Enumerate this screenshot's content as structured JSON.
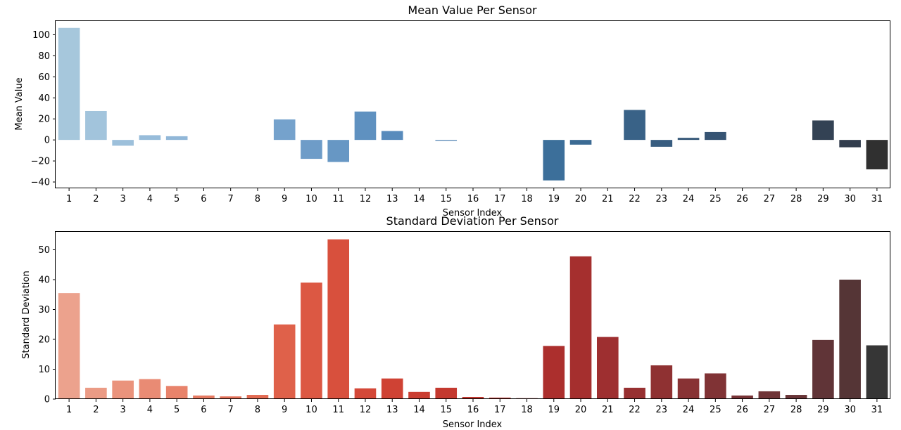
{
  "chart_data": [
    {
      "type": "bar",
      "title": "Mean Value Per Sensor",
      "xlabel": "Sensor Index",
      "ylabel": "Mean Value",
      "ylim": [
        -46,
        113
      ],
      "yticks": [
        -40,
        -20,
        0,
        20,
        40,
        60,
        80,
        100
      ],
      "grid": false,
      "legend": "none",
      "palette": "Blues_d",
      "categories": [
        "1",
        "2",
        "3",
        "4",
        "5",
        "6",
        "7",
        "8",
        "9",
        "10",
        "11",
        "12",
        "13",
        "14",
        "15",
        "16",
        "17",
        "18",
        "19",
        "20",
        "21",
        "22",
        "23",
        "24",
        "25",
        "26",
        "27",
        "28",
        "29",
        "30",
        "31"
      ],
      "values": [
        106.5,
        27.5,
        -5.5,
        4.5,
        3.5,
        0,
        0,
        0,
        19.5,
        -18.0,
        -21.0,
        27.0,
        8.5,
        0,
        -0.8,
        0,
        0,
        0,
        -38.5,
        -4.5,
        0,
        28.5,
        -6.5,
        2.0,
        7.5,
        0,
        0,
        0,
        18.5,
        -7.0,
        -28.0
      ],
      "colors": [
        "#a6c7dc",
        "#a2c4dc",
        "#9dc0db",
        "#97bcda",
        "#91b7d8",
        "#8bb2d6",
        "#84add3",
        "#7da7d0",
        "#75a2cc",
        "#6e9cc8",
        "#6797c4",
        "#5f91c0",
        "#588bbc",
        "#5185b6",
        "#4a7fb0",
        "#457aab",
        "#4176a5",
        "#3e72a0",
        "#3c6f9a",
        "#3b6a93",
        "#3a668d",
        "#396287",
        "#385d80",
        "#375979",
        "#365473",
        "#364f6b",
        "#354b64",
        "#34465c",
        "#334254",
        "#323d4d",
        "#303030"
      ]
    },
    {
      "type": "bar",
      "title": "Standard Deviation Per Sensor",
      "xlabel": "Sensor Index",
      "ylabel": "Standard Deviation",
      "ylim": [
        0,
        56
      ],
      "yticks": [
        0,
        10,
        20,
        30,
        40,
        50
      ],
      "grid": false,
      "legend": "none",
      "palette": "Reds_d",
      "categories": [
        "1",
        "2",
        "3",
        "4",
        "5",
        "6",
        "7",
        "8",
        "9",
        "10",
        "11",
        "12",
        "13",
        "14",
        "15",
        "16",
        "17",
        "18",
        "19",
        "20",
        "21",
        "22",
        "23",
        "24",
        "25",
        "26",
        "27",
        "28",
        "29",
        "30",
        "31"
      ],
      "values": [
        35.5,
        3.8,
        6.2,
        6.7,
        4.4,
        1.2,
        0.9,
        1.4,
        25.0,
        39.0,
        53.5,
        3.6,
        6.9,
        2.4,
        3.8,
        0.7,
        0.5,
        0.3,
        17.8,
        47.8,
        20.8,
        3.8,
        11.3,
        6.9,
        8.6,
        1.2,
        2.6,
        1.4,
        19.8,
        40.0,
        18.0
      ],
      "colors": [
        "#eca28d",
        "#eb9b85",
        "#ea937c",
        "#e98b74",
        "#e8836b",
        "#e67a62",
        "#e4725a",
        "#e26a52",
        "#df614a",
        "#dc5843",
        "#d8503d",
        "#d44838",
        "#cf4234",
        "#ca3d31",
        "#c4392f",
        "#be352d",
        "#b8322c",
        "#b2302c",
        "#ac2f2d",
        "#a52f2e",
        "#9e2f30",
        "#973031",
        "#8f3132",
        "#883234",
        "#803335",
        "#783336",
        "#703437",
        "#683437",
        "#603437",
        "#553536",
        "#363636"
      ]
    }
  ]
}
